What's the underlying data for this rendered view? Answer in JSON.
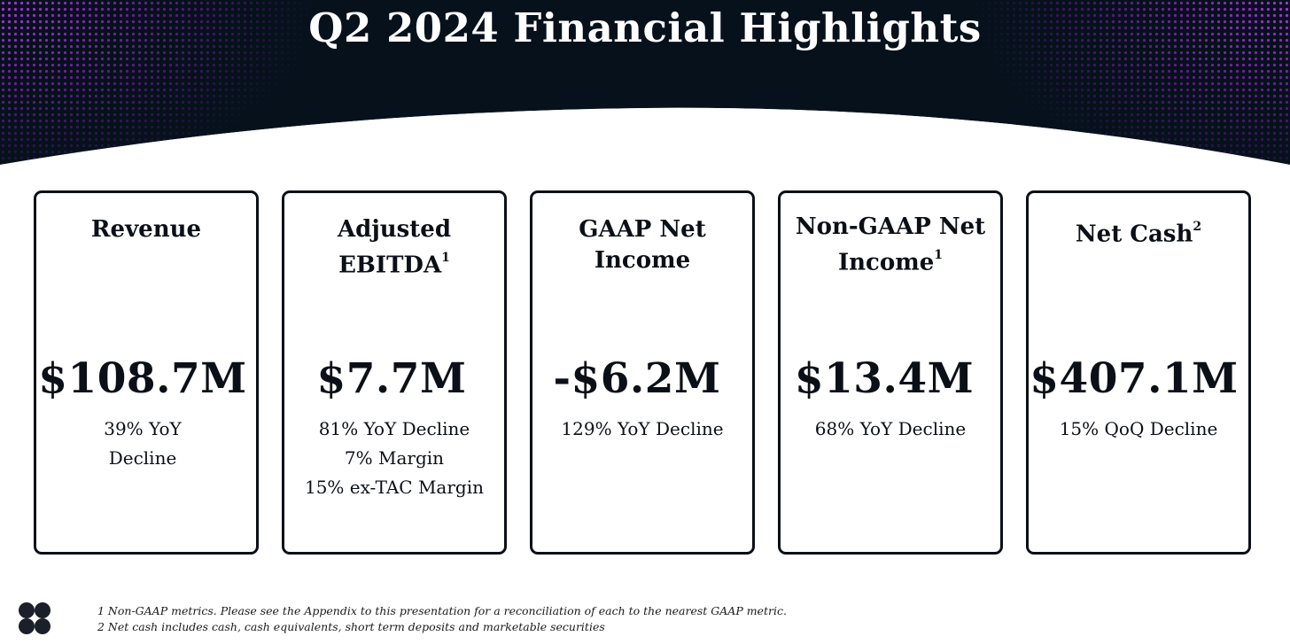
{
  "slide": {
    "title": "Q2 2024 Financial Highlights"
  },
  "cards": [
    {
      "heading_lines": [
        "Revenue"
      ],
      "heading_sup": "",
      "value": "$108.7M",
      "notes": [
        "39% YoY",
        "Decline"
      ]
    },
    {
      "heading_lines": [
        "Adjusted",
        "EBITDA"
      ],
      "heading_sup": "1",
      "value": "$7.7M",
      "notes": [
        "81% YoY Decline",
        "7% Margin",
        "15% ex-TAC Margin"
      ]
    },
    {
      "heading_lines": [
        "GAAP Net",
        "Income"
      ],
      "heading_sup": "",
      "value": "-$6.2M",
      "notes": [
        "129% YoY Decline"
      ]
    },
    {
      "heading_lines": [
        "Non-GAAP Net",
        "Income"
      ],
      "heading_sup": "1",
      "value": "$13.4M",
      "notes": [
        "68% YoY Decline"
      ]
    },
    {
      "heading_lines": [
        "Net Cash"
      ],
      "heading_sup": "2",
      "value": "$407.1M",
      "notes": [
        "15% QoQ Decline"
      ]
    }
  ],
  "footnotes": [
    "1 Non-GAAP metrics. Please see the Appendix to this presentation for a reconciliation of each to the nearest GAAP metric.",
    "2 Net cash includes cash, cash equivalents, short term deposits and marketable securities"
  ],
  "colors": {
    "header_dark": "#06111c",
    "dot_accent": "#a21bd8",
    "card_border": "#0b0f17",
    "text_primary": "#0b0f17"
  },
  "icons": {
    "logo": "four-circle-logo-icon"
  }
}
